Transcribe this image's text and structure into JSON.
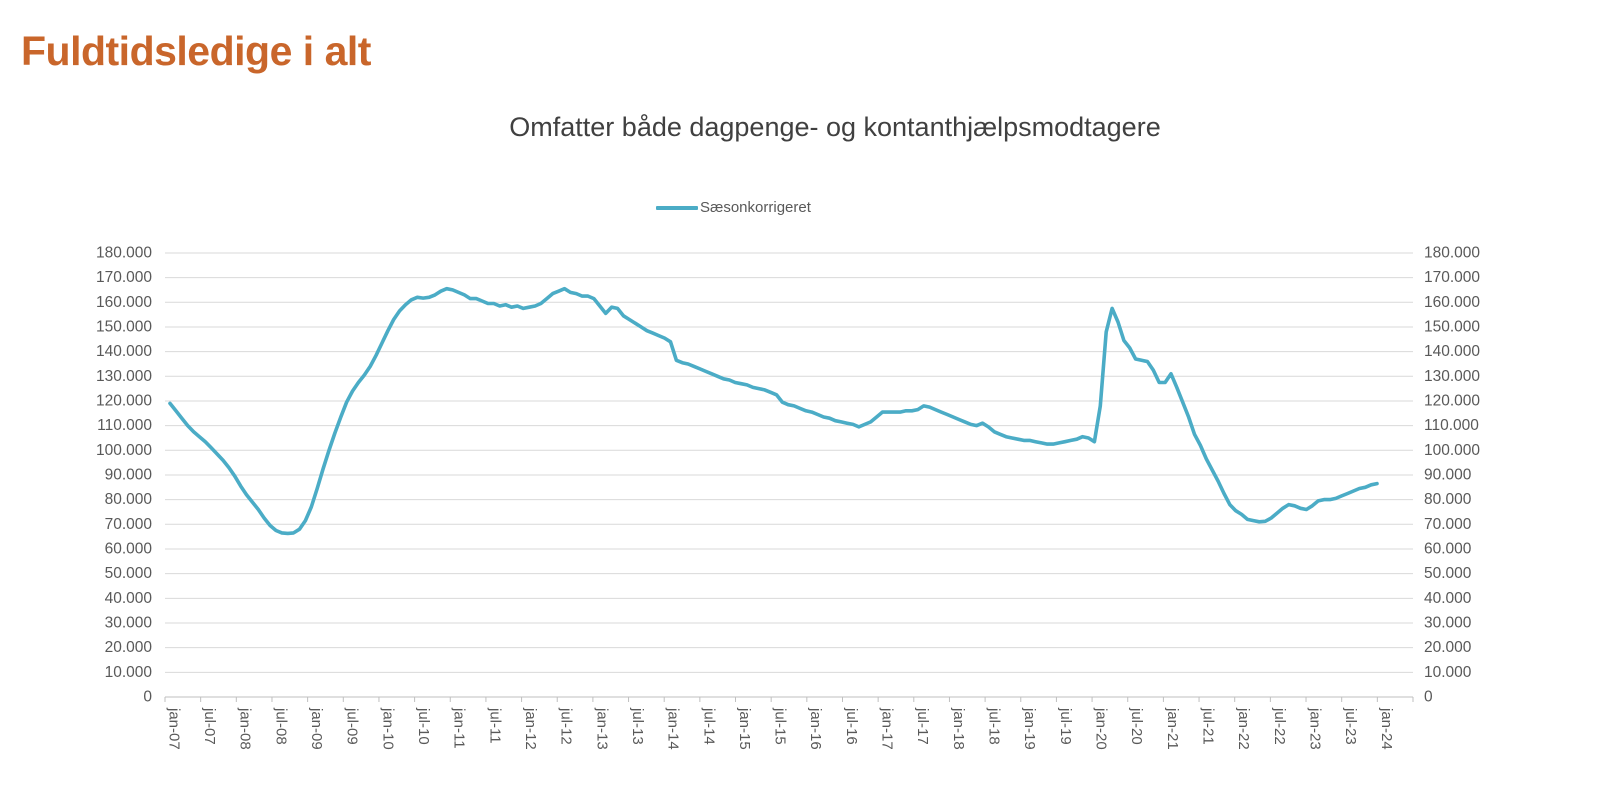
{
  "page": {
    "title": "Fuldtidsledige i alt"
  },
  "chart": {
    "subtitle": "Omfatter både dagpenge- og kontanthjælpsmodtagere",
    "legend": {
      "label": "Sæsonkorrigeret"
    }
  },
  "colors": {
    "title_orange": "#C9662B",
    "subtitle_gray": "#404040",
    "axis_text": "#595959",
    "gridline": "#D9D9D9",
    "axis_line": "#BFBFBF",
    "series_teal": "#4BACC6"
  },
  "chart_data": {
    "type": "line",
    "title": "Omfatter både dagpenge- og kontanthjælpsmodtagere",
    "legend_position": "top-center",
    "grid": "horizontal",
    "y_axis_sides": "both",
    "ylim": [
      0,
      180000
    ],
    "y_tick_step": 10000,
    "y_tick_labels": [
      "0",
      "10.000",
      "20.000",
      "30.000",
      "40.000",
      "50.000",
      "60.000",
      "70.000",
      "80.000",
      "90.000",
      "100.000",
      "110.000",
      "120.000",
      "130.000",
      "140.000",
      "150.000",
      "160.000",
      "170.000",
      "180.000"
    ],
    "x_unit": "month",
    "x_start": "jan-07",
    "x_end": "feb-24",
    "x_tick_interval_months": 6,
    "x_tick_labels": [
      "jan-07",
      "jul-07",
      "jan-08",
      "jul-08",
      "jan-09",
      "jul-09",
      "jan-10",
      "jul-10",
      "jan-11",
      "jul-11",
      "jan-12",
      "jul-12",
      "jan-13",
      "jul-13",
      "jan-14",
      "jul-14",
      "jan-15",
      "jul-15",
      "jan-16",
      "jul-16",
      "jan-17",
      "jul-17",
      "jan-18",
      "jul-18",
      "jan-19",
      "jul-19",
      "jan-20",
      "jul-20",
      "jan-21",
      "jul-21",
      "jan-22",
      "jul-22",
      "jan-23",
      "jul-23",
      "jan-24"
    ],
    "series": [
      {
        "name": "Sæsonkorrigeret",
        "color": "#4BACC6",
        "values": [
          119000,
          116000,
          113000,
          110000,
          107500,
          105500,
          103500,
          101000,
          98500,
          96000,
          93000,
          89500,
          85500,
          82000,
          79000,
          76000,
          72500,
          69500,
          67500,
          66500,
          66300,
          66500,
          68000,
          71500,
          77000,
          84500,
          92500,
          100000,
          107000,
          113500,
          119500,
          124000,
          127500,
          130500,
          134000,
          138500,
          143500,
          148500,
          153000,
          156500,
          159000,
          161000,
          162000,
          161700,
          162000,
          163000,
          164500,
          165500,
          165000,
          164000,
          163000,
          161500,
          161500,
          160500,
          159500,
          159500,
          158500,
          159000,
          158000,
          158500,
          157500,
          158000,
          158500,
          159500,
          161500,
          163500,
          164500,
          165500,
          164000,
          163500,
          162500,
          162500,
          161500,
          158500,
          155500,
          158000,
          157500,
          154500,
          153000,
          151500,
          150000,
          148500,
          147500,
          146500,
          145500,
          144000,
          136500,
          135500,
          135000,
          134000,
          133000,
          132000,
          131000,
          130000,
          129000,
          128500,
          127500,
          127000,
          126500,
          125500,
          125000,
          124500,
          123500,
          122500,
          119500,
          118500,
          118000,
          117000,
          116000,
          115500,
          114500,
          113500,
          113000,
          112000,
          111500,
          111000,
          110500,
          109500,
          110500,
          111500,
          113500,
          115500,
          115500,
          115500,
          115500,
          116000,
          116000,
          116500,
          118000,
          117500,
          116500,
          115500,
          114500,
          113500,
          112500,
          111500,
          110500,
          110000,
          111000,
          109500,
          107500,
          106500,
          105500,
          105000,
          104500,
          104000,
          104000,
          103500,
          103000,
          102500,
          102500,
          103000,
          103500,
          104000,
          104500,
          105500,
          105000,
          103500,
          118000,
          148000,
          157500,
          152000,
          144500,
          141500,
          137000,
          136500,
          136000,
          132500,
          127500,
          127500,
          131000,
          125500,
          119500,
          113500,
          106500,
          102000,
          96500,
          92000,
          87500,
          82500,
          78000,
          75500,
          74000,
          72000,
          71500,
          71000,
          71200,
          72500,
          74500,
          76500,
          78000,
          77500,
          76500,
          76000,
          77500,
          79500,
          80000,
          80000,
          80500,
          81500,
          82500,
          83500,
          84500,
          85000,
          86000,
          86500
        ]
      }
    ]
  }
}
